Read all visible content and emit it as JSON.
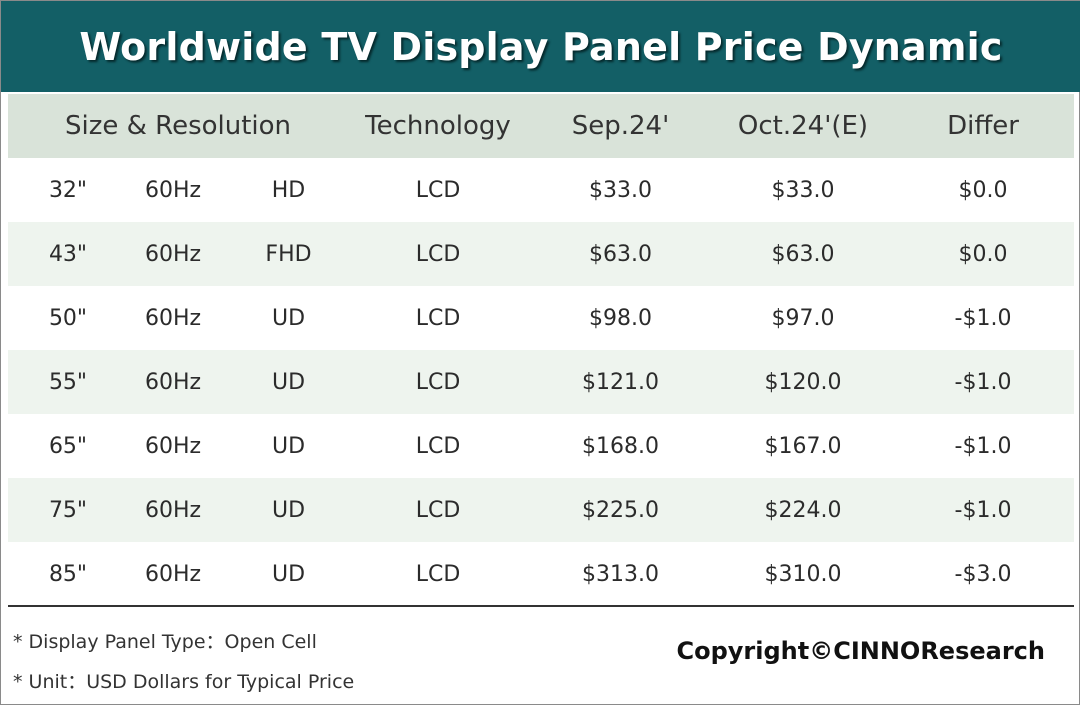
{
  "title": "Worldwide TV Display Panel Price Dynamic",
  "table": {
    "headers": {
      "size_resolution": "Size & Resolution",
      "technology": "Technology",
      "sep": "Sep.24'",
      "oct": "Oct.24'(E)",
      "differ": "Differ"
    },
    "rows": [
      {
        "size": "32\"",
        "refresh": "60Hz",
        "resolution": "HD",
        "technology": "LCD",
        "sep": "$33.0",
        "oct": "$33.0",
        "differ": "$0.0"
      },
      {
        "size": "43\"",
        "refresh": "60Hz",
        "resolution": "FHD",
        "technology": "LCD",
        "sep": "$63.0",
        "oct": "$63.0",
        "differ": "$0.0"
      },
      {
        "size": "50\"",
        "refresh": "60Hz",
        "resolution": "UD",
        "technology": "LCD",
        "sep": "$98.0",
        "oct": "$97.0",
        "differ": "-$1.0"
      },
      {
        "size": "55\"",
        "refresh": "60Hz",
        "resolution": "UD",
        "technology": "LCD",
        "sep": "$121.0",
        "oct": "$120.0",
        "differ": "-$1.0"
      },
      {
        "size": "65\"",
        "refresh": "60Hz",
        "resolution": "UD",
        "technology": "LCD",
        "sep": "$168.0",
        "oct": "$167.0",
        "differ": "-$1.0"
      },
      {
        "size": "75\"",
        "refresh": "60Hz",
        "resolution": "UD",
        "technology": "LCD",
        "sep": "$225.0",
        "oct": "$224.0",
        "differ": "-$1.0"
      },
      {
        "size": "85\"",
        "refresh": "60Hz",
        "resolution": "UD",
        "technology": "LCD",
        "sep": "$313.0",
        "oct": "$310.0",
        "differ": "-$3.0"
      }
    ]
  },
  "notes": {
    "panel_type": "* Display Panel Type：Open Cell",
    "unit": "* Unit：USD Dollars for Typical Price"
  },
  "copyright": "Copyright©CINNOResearch",
  "colors": {
    "title_bar": "#135f66",
    "header_row": "#d9e3d9",
    "shaded_row": "#eef4ee"
  }
}
